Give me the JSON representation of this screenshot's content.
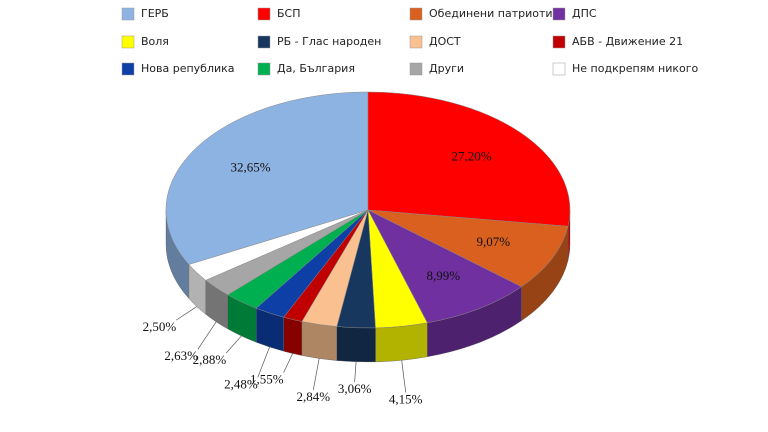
{
  "chart_data": {
    "type": "pie",
    "categories": [
      "ГЕРБ",
      "БСП",
      "Обединени патриоти",
      "ДПС",
      "Воля",
      "РБ - Глас народен",
      "ДОСТ",
      "АБВ - Движение 21",
      "Нова република",
      "Да, България",
      "Други",
      "Не подкрепям никого"
    ],
    "values": [
      32.65,
      27.2,
      9.07,
      8.99,
      4.15,
      3.06,
      2.84,
      1.55,
      2.48,
      2.88,
      2.63,
      2.5
    ],
    "value_labels": [
      "32,65%",
      "27,20%",
      "9,07%",
      "8,99%",
      "4,15%",
      "3,06%",
      "2,84%",
      "1,55%",
      "2,48%",
      "2,88%",
      "2,63%",
      "2,50%"
    ],
    "colors": [
      "#8db3e2",
      "#ff0000",
      "#d9601f",
      "#7030a0",
      "#ffff00",
      "#17375e",
      "#fac090",
      "#c00000",
      "#0d3fa6",
      "#00b050",
      "#a6a6a6",
      "#ffffff"
    ],
    "legend": "top"
  }
}
